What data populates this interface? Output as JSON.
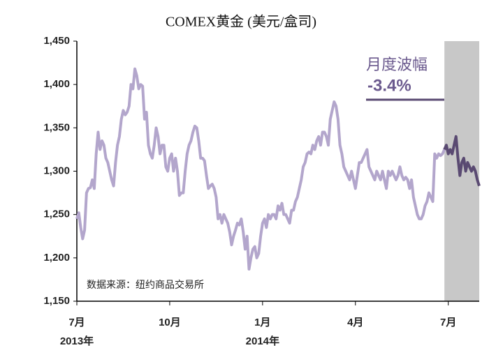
{
  "chart_data": {
    "type": "line",
    "title": "COMEX黄金 (美元/盒司)",
    "annotations": [
      "月度波幅",
      "-3.4%",
      "数据来源：纽约商品交易所"
    ],
    "xlim": [
      0,
      208
    ],
    "xticks": [
      {
        "value": 0,
        "label": "7月"
      },
      {
        "value": 48,
        "label": "10月"
      },
      {
        "value": 96,
        "label": "1月"
      },
      {
        "value": 144,
        "label": "4月"
      },
      {
        "value": 192,
        "label": "7月"
      }
    ],
    "xtick_years": [
      "2013年",
      null,
      "2014年",
      null,
      null
    ],
    "ylim": [
      1150,
      1450
    ],
    "yticks": [
      {
        "value": 1150,
        "label": "1,150"
      },
      {
        "value": 1200,
        "label": "1,200"
      },
      {
        "value": 1250,
        "label": "1,250"
      },
      {
        "value": 1300,
        "label": "1,300"
      },
      {
        "value": 1350,
        "label": "1,350"
      },
      {
        "value": 1400,
        "label": "1,400"
      },
      {
        "value": 1450,
        "label": "1,450"
      }
    ],
    "grid": false,
    "highlight_color": "#c8c8c8",
    "series": [
      {
        "color": "#b3a6cc",
        "values": [
          1245,
          1252,
          1235,
          1222,
          1232,
          1275,
          1280,
          1281,
          1290,
          1280,
          1320,
          1345,
          1325,
          1335,
          1330,
          1315,
          1310,
          1300,
          1290,
          1283,
          1310,
          1330,
          1340,
          1360,
          1370,
          1365,
          1368,
          1375,
          1400,
          1395,
          1418,
          1410,
          1395,
          1400,
          1398,
          1360,
          1368,
          1330,
          1320,
          1315,
          1330,
          1350,
          1340,
          1320,
          1330,
          1330,
          1305,
          1300,
          1315,
          1320,
          1300,
          1315,
          1300,
          1272,
          1275,
          1275,
          1300,
          1320,
          1330,
          1335,
          1345,
          1352,
          1350,
          1335,
          1315,
          1315,
          1312,
          1295,
          1280,
          1283,
          1285,
          1280,
          1270,
          1245,
          1250,
          1240,
          1250,
          1245,
          1240,
          1230,
          1215,
          1225,
          1232,
          1240,
          1238,
          1245,
          1230,
          1210,
          1225,
          1187,
          1200,
          1210,
          1213,
          1200,
          1205,
          1225,
          1240,
          1245,
          1235,
          1250,
          1245,
          1250,
          1250,
          1245,
          1260,
          1255,
          1263,
          1250,
          1250,
          1245,
          1240,
          1255,
          1255,
          1265,
          1270,
          1280,
          1290,
          1305,
          1310,
          1320,
          1322,
          1320,
          1330,
          1325,
          1335,
          1340,
          1330,
          1345,
          1345,
          1340,
          1330,
          1360,
          1370,
          1380,
          1375,
          1360,
          1330,
          1320,
          1305,
          1300,
          1295,
          1290,
          1300,
          1290,
          1280,
          1295,
          1310,
          1310,
          1315,
          1320,
          1325,
          1305,
          1300,
          1295,
          1290,
          1300,
          1295,
          1290,
          1300,
          1290,
          1280,
          1300,
          1295,
          1300,
          1295,
          1290,
          1295,
          1305,
          1295,
          1290,
          1293,
          1290,
          1280,
          1290,
          1270,
          1260,
          1250,
          1245,
          1245,
          1250,
          1260,
          1265,
          1275,
          1270,
          1265,
          1320,
          1315,
          1320,
          1318,
          1320,
          1325,
          null,
          null,
          null,
          null,
          null,
          null,
          null,
          null,
          null,
          null,
          null,
          null,
          null,
          null,
          null,
          null,
          null,
          null
        ]
      },
      {
        "color": "#5a4a72",
        "values": [
          null,
          null,
          null,
          null,
          null,
          null,
          null,
          null,
          null,
          null,
          null,
          null,
          null,
          null,
          null,
          null,
          null,
          null,
          null,
          null,
          null,
          null,
          null,
          null,
          null,
          null,
          null,
          null,
          null,
          null,
          null,
          null,
          null,
          null,
          null,
          null,
          null,
          null,
          null,
          null,
          null,
          null,
          null,
          null,
          null,
          null,
          null,
          null,
          null,
          null,
          null,
          null,
          null,
          null,
          null,
          null,
          null,
          null,
          null,
          null,
          null,
          null,
          null,
          null,
          null,
          null,
          null,
          null,
          null,
          null,
          null,
          null,
          null,
          null,
          null,
          null,
          null,
          null,
          null,
          null,
          null,
          null,
          null,
          null,
          null,
          null,
          null,
          null,
          null,
          null,
          null,
          null,
          null,
          null,
          null,
          null,
          null,
          null,
          null,
          null,
          null,
          null,
          null,
          null,
          null,
          null,
          null,
          null,
          null,
          null,
          null,
          null,
          null,
          null,
          null,
          null,
          null,
          null,
          null,
          null,
          null,
          null,
          null,
          null,
          null,
          null,
          null,
          null,
          null,
          null,
          null,
          null,
          null,
          null,
          null,
          null,
          null,
          null,
          null,
          null,
          null,
          null,
          null,
          null,
          null,
          null,
          null,
          null,
          null,
          null,
          null,
          null,
          null,
          null,
          null,
          null,
          null,
          null,
          null,
          null,
          null,
          null,
          null,
          null,
          null,
          null,
          null,
          null,
          null,
          null,
          null,
          null,
          null,
          null,
          null,
          null,
          null,
          null,
          null,
          null,
          null,
          null,
          null,
          null,
          null,
          null,
          null,
          null,
          null,
          null,
          1325,
          1330,
          1320,
          1325,
          1320,
          1330,
          1340,
          1315,
          1295,
          1310,
          1315,
          1300,
          1310,
          1305,
          1300,
          1305,
          1300,
          1290,
          1283
        ]
      }
    ]
  }
}
